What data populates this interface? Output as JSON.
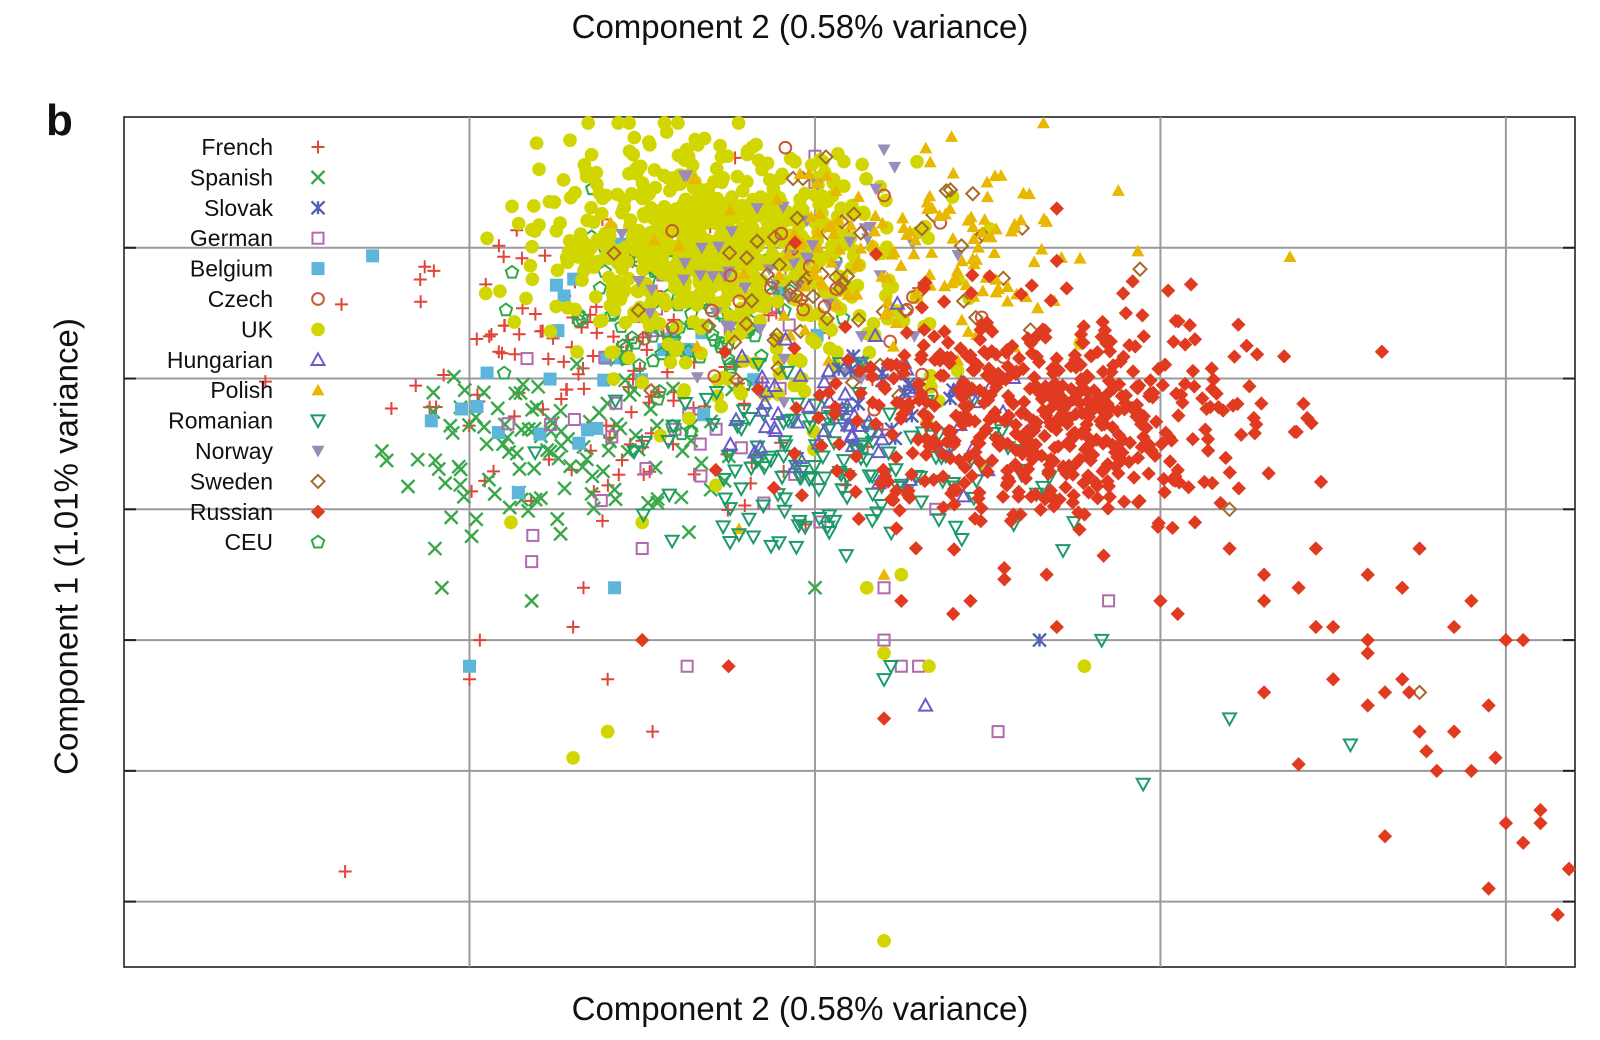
{
  "figure": {
    "top_title": "Component 2 (0.58% variance)",
    "panel_label": "b"
  },
  "chart_data": {
    "type": "scatter",
    "xlabel": "Component 2 (0.58% variance)",
    "ylabel": "Component 1 (1.01% variance)",
    "xlim": [
      0,
      4.2
    ],
    "ylim": [
      0,
      6.5
    ],
    "grid": true,
    "tick_labels": false,
    "legend_position": "top-left",
    "series": [
      {
        "name": "French",
        "color": "#e0453a",
        "marker": "plus",
        "clusters": [
          {
            "cx": 1.45,
            "cy": 4.55,
            "sx": 0.32,
            "sy": 0.55,
            "n": 150
          }
        ],
        "points": [
          [
            0.64,
            0.73
          ],
          [
            1.4,
            2.2
          ],
          [
            1.3,
            2.6
          ],
          [
            1.0,
            2.2
          ],
          [
            1.53,
            1.8
          ],
          [
            1.33,
            2.9
          ],
          [
            1.03,
            2.5
          ]
        ]
      },
      {
        "name": "Spanish",
        "color": "#3aa84a",
        "marker": "x",
        "clusters": [
          {
            "cx": 1.25,
            "cy": 4.0,
            "sx": 0.25,
            "sy": 0.35,
            "n": 110
          }
        ],
        "points": [
          [
            0.9,
            3.2
          ],
          [
            0.92,
            2.9
          ],
          [
            0.93,
            3.7
          ],
          [
            1.18,
            2.8
          ],
          [
            2.0,
            2.9
          ]
        ]
      },
      {
        "name": "Slovak",
        "color": "#5561b8",
        "marker": "star",
        "clusters": [
          {
            "cx": 2.2,
            "cy": 4.4,
            "sx": 0.15,
            "sy": 0.2,
            "n": 15
          }
        ],
        "points": [
          [
            2.65,
            2.5
          ]
        ]
      },
      {
        "name": "German",
        "color": "#b06aad",
        "marker": "square",
        "clusters": [
          {
            "cx": 1.6,
            "cy": 4.3,
            "sx": 0.3,
            "sy": 0.5,
            "n": 30
          }
        ],
        "points": [
          [
            2.0,
            6.2
          ],
          [
            2.0,
            6.0
          ],
          [
            1.18,
            3.1
          ],
          [
            1.5,
            3.2
          ],
          [
            1.63,
            2.3
          ],
          [
            2.2,
            2.5
          ],
          [
            2.25,
            2.3
          ],
          [
            2.3,
            2.3
          ],
          [
            2.53,
            1.8
          ],
          [
            2.85,
            2.8
          ],
          [
            2.2,
            2.9
          ],
          [
            2.35,
            3.5
          ]
        ]
      },
      {
        "name": "Belgium",
        "color": "#5db6d9",
        "marker": "square-filled",
        "clusters": [
          {
            "cx": 1.4,
            "cy": 4.7,
            "sx": 0.25,
            "sy": 0.45,
            "n": 35
          }
        ],
        "points": [
          [
            1.0,
            2.3
          ],
          [
            1.42,
            2.9
          ]
        ]
      },
      {
        "name": "Czech",
        "color": "#c8583a",
        "marker": "circle-open",
        "clusters": [
          {
            "cx": 2.0,
            "cy": 5.0,
            "sx": 0.3,
            "sy": 0.45,
            "n": 25
          }
        ],
        "points": [
          [
            2.2,
            5.9
          ]
        ]
      },
      {
        "name": "UK",
        "color": "#d2d600",
        "marker": "circle-filled",
        "clusters": [
          {
            "cx": 1.7,
            "cy": 5.55,
            "sx": 0.24,
            "sy": 0.35,
            "n": 650
          },
          {
            "cx": 1.95,
            "cy": 4.8,
            "sx": 0.3,
            "sy": 0.4,
            "n": 80
          }
        ],
        "points": [
          [
            2.2,
            0.2
          ],
          [
            2.2,
            2.4
          ],
          [
            2.33,
            2.3
          ],
          [
            2.78,
            2.3
          ],
          [
            1.4,
            1.8
          ],
          [
            1.3,
            1.6
          ],
          [
            1.12,
            3.4
          ],
          [
            1.5,
            3.4
          ],
          [
            2.25,
            3.0
          ],
          [
            2.15,
            2.9
          ]
        ]
      },
      {
        "name": "Hungarian",
        "color": "#6a5cc8",
        "marker": "triangle-up",
        "clusters": [
          {
            "cx": 2.15,
            "cy": 4.3,
            "sx": 0.22,
            "sy": 0.3,
            "n": 60
          }
        ],
        "points": [
          [
            2.32,
            2.0
          ],
          [
            2.5,
            3.8
          ],
          [
            2.43,
            3.6
          ]
        ]
      },
      {
        "name": "Polish",
        "color": "#e8b800",
        "marker": "triangle-up-filled",
        "clusters": [
          {
            "cx": 2.3,
            "cy": 5.4,
            "sx": 0.3,
            "sy": 0.38,
            "n": 140
          }
        ],
        "points": [
          [
            2.2,
            3.0
          ],
          [
            1.78,
            3.35
          ]
        ]
      },
      {
        "name": "Romanian",
        "color": "#1d9a6a",
        "marker": "triangle-down",
        "clusters": [
          {
            "cx": 2.05,
            "cy": 3.85,
            "sx": 0.28,
            "sy": 0.32,
            "n": 150
          }
        ],
        "points": [
          [
            2.2,
            2.2
          ],
          [
            2.22,
            2.3
          ],
          [
            2.4,
            3.7
          ],
          [
            2.4,
            3.7
          ],
          [
            2.6,
            3.8
          ],
          [
            2.75,
            3.4
          ],
          [
            2.83,
            2.5
          ],
          [
            2.95,
            1.4
          ],
          [
            3.2,
            1.9
          ],
          [
            3.55,
            1.7
          ]
        ]
      },
      {
        "name": "Norway",
        "color": "#9a8cb8",
        "marker": "triangle-down-filled",
        "clusters": [
          {
            "cx": 1.9,
            "cy": 5.3,
            "sx": 0.25,
            "sy": 0.4,
            "n": 50
          }
        ],
        "points": [
          [
            2.2,
            6.25
          ]
        ]
      },
      {
        "name": "Sweden",
        "color": "#a56a2a",
        "marker": "diamond-open",
        "clusters": [
          {
            "cx": 2.05,
            "cy": 5.2,
            "sx": 0.25,
            "sy": 0.4,
            "n": 60
          }
        ],
        "points": [
          [
            2.6,
            5.65
          ],
          [
            3.2,
            3.5
          ],
          [
            3.75,
            2.1
          ]
        ]
      },
      {
        "name": "Russian",
        "color": "#e03a20",
        "marker": "diamond-filled",
        "clusters": [
          {
            "cx": 2.65,
            "cy": 4.2,
            "sx": 0.3,
            "sy": 0.42,
            "n": 550
          }
        ],
        "points": [
          [
            3.0,
            2.8
          ],
          [
            3.05,
            2.7
          ],
          [
            3.1,
            3.4
          ],
          [
            3.2,
            3.2
          ],
          [
            3.3,
            3.0
          ],
          [
            3.4,
            2.9
          ],
          [
            3.45,
            3.2
          ],
          [
            3.3,
            2.8
          ],
          [
            3.6,
            3.0
          ],
          [
            3.7,
            2.9
          ],
          [
            3.75,
            3.2
          ],
          [
            3.9,
            2.8
          ],
          [
            3.85,
            2.6
          ],
          [
            4.0,
            2.5
          ],
          [
            4.05,
            2.5
          ],
          [
            3.95,
            2.0
          ],
          [
            3.97,
            1.6
          ],
          [
            4.1,
            1.1
          ],
          [
            4.1,
            1.2
          ],
          [
            4.15,
            0.4
          ],
          [
            3.95,
            0.6
          ],
          [
            4.2,
            0.75
          ],
          [
            4.05,
            0.95
          ],
          [
            3.8,
            1.5
          ],
          [
            3.85,
            1.8
          ],
          [
            3.6,
            2.4
          ],
          [
            3.65,
            2.1
          ],
          [
            3.5,
            2.6
          ],
          [
            3.45,
            2.6
          ],
          [
            2.2,
            1.9
          ],
          [
            2.25,
            2.8
          ],
          [
            2.4,
            2.7
          ],
          [
            2.45,
            2.8
          ],
          [
            1.75,
            2.3
          ],
          [
            1.5,
            2.5
          ],
          [
            2.7,
            2.6
          ],
          [
            3.1,
            4.8
          ],
          [
            2.7,
            5.8
          ],
          [
            2.7,
            5.4
          ],
          [
            2.9,
            5.0
          ],
          [
            3.05,
            3.8
          ],
          [
            3.15,
            3.7
          ],
          [
            3.3,
            2.1
          ],
          [
            3.6,
            2.0
          ],
          [
            3.7,
            2.2
          ],
          [
            3.4,
            1.55
          ],
          [
            3.5,
            2.2
          ],
          [
            3.65,
            1.0
          ],
          [
            3.75,
            1.8
          ],
          [
            3.9,
            1.5
          ],
          [
            4.0,
            1.1
          ],
          [
            4.2,
            0.75
          ],
          [
            3.77,
            1.65
          ],
          [
            3.72,
            2.1
          ],
          [
            3.6,
            2.5
          ]
        ]
      },
      {
        "name": "CEU",
        "color": "#2ea84a",
        "marker": "pentagon-open",
        "clusters": [
          {
            "cx": 1.6,
            "cy": 5.0,
            "sx": 0.2,
            "sy": 0.35,
            "n": 90
          }
        ],
        "points": [
          [
            1.55,
            4.4
          ]
        ]
      }
    ]
  }
}
